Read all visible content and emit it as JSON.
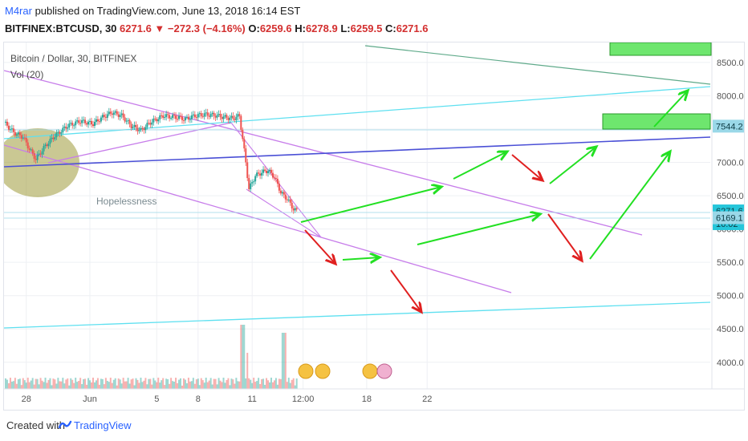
{
  "header": {
    "author": "M4rar",
    "published_text": "published on TradingView.com, June 13, 2018 16:14 EST",
    "symbol": "BITFINEX:BTCUSD, 30",
    "last": "6271.6",
    "change": "▼ −272.3 (−4.16%)",
    "open_label": "O:",
    "open": "6259.6",
    "high_label": "H:",
    "high": "6278.9",
    "low_label": "L:",
    "low": "6259.5",
    "close_label": "C:",
    "close": "6271.6"
  },
  "chart_labels": {
    "pair": "Bitcoin / Dollar, 30, BITFINEX",
    "volume": "Vol (20)",
    "annotation": "Hopelessness"
  },
  "footer": {
    "created_with": "Created with",
    "brand": "TradingView"
  },
  "colors": {
    "up": "#26a69a",
    "down": "#ef5350",
    "purple": "#c77dea",
    "blue": "#4a4fd6",
    "cyan": "#5ee0f0",
    "green_arrow": "#22e022",
    "red_arrow": "#e02020",
    "green_box": "#6ee66e",
    "ellipse": "#9f9a3a"
  },
  "chart_data": {
    "type": "line",
    "title": "Bitcoin / Dollar, 30, BITFINEX",
    "series": [
      {
        "name": "Bitcoin / Dollar",
        "points": [
          [
            0,
            7600
          ],
          [
            3,
            7450
          ],
          [
            6,
            7380
          ],
          [
            8,
            7200
          ],
          [
            10,
            7050
          ],
          [
            13,
            7250
          ],
          [
            16,
            7400
          ],
          [
            20,
            7550
          ],
          [
            24,
            7620
          ],
          [
            28,
            7580
          ],
          [
            31,
            7680
          ],
          [
            34,
            7750
          ],
          [
            37,
            7700
          ],
          [
            40,
            7550
          ],
          [
            43,
            7480
          ],
          [
            46,
            7600
          ],
          [
            50,
            7700
          ],
          [
            54,
            7680
          ],
          [
            57,
            7650
          ],
          [
            60,
            7700
          ],
          [
            63,
            7720
          ],
          [
            66,
            7710
          ],
          [
            69,
            7680
          ],
          [
            72,
            7660
          ],
          [
            74,
            7700
          ],
          [
            75,
            7350
          ],
          [
            76,
            7000
          ],
          [
            77,
            6600
          ],
          [
            79,
            6800
          ],
          [
            81,
            6850
          ],
          [
            83,
            6880
          ],
          [
            85,
            6780
          ],
          [
            87,
            6550
          ],
          [
            89,
            6450
          ],
          [
            91,
            6300
          ],
          [
            92,
            6271.6
          ]
        ]
      }
    ],
    "y_ticks": [
      8500,
      8000,
      7500,
      7000,
      6500,
      6000,
      5500,
      5000,
      4500,
      4000
    ],
    "ylim": [
      3600,
      8800
    ],
    "x_ticks": [
      {
        "label": "28",
        "x": 7
      },
      {
        "label": "Jun",
        "x": 27
      },
      {
        "label": "5",
        "x": 48
      },
      {
        "label": "8",
        "x": 61
      },
      {
        "label": "11",
        "x": 78
      },
      {
        "label": "12:00",
        "x": 94
      },
      {
        "label": "18",
        "x": 114
      },
      {
        "label": "22",
        "x": 133
      }
    ],
    "xlim": [
      0,
      222
    ],
    "price_labels": [
      {
        "value": 7544.2,
        "label": "7544.2"
      },
      {
        "value": 6271.6,
        "label": "6271.6"
      },
      {
        "value": 6080,
        "label": "16:02"
      },
      {
        "value": 6169.1,
        "label": "6169.1"
      }
    ]
  }
}
